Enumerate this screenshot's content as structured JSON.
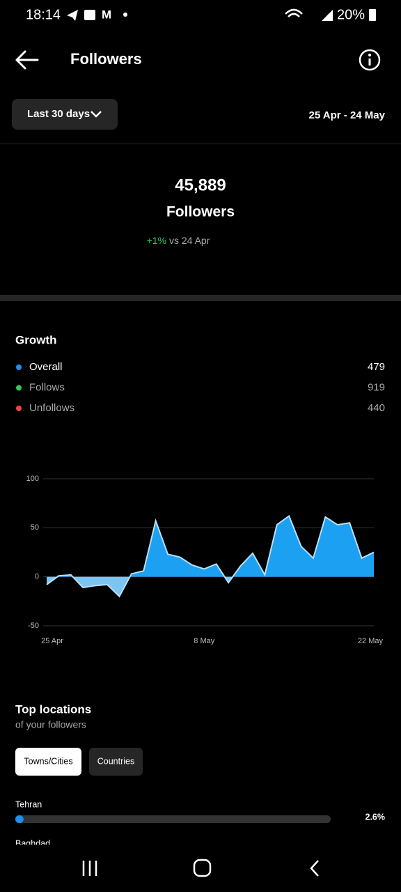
{
  "status_bar": {
    "time": "18:14",
    "battery": "20%"
  },
  "header": {
    "title": "Followers"
  },
  "filter": {
    "period": "Last 30 days",
    "range": "25 Apr - 24 May"
  },
  "summary": {
    "count": "45,889",
    "label": "Followers",
    "change": "+1%",
    "compare": "vs 24 Apr"
  },
  "growth": {
    "title": "Growth",
    "legend": [
      {
        "name": "Overall",
        "color": "#1e90f0",
        "value": "479"
      },
      {
        "name": "Follows",
        "color": "#34c759",
        "value": "919"
      },
      {
        "name": "Unfollows",
        "color": "#ef4444",
        "value": "440"
      }
    ]
  },
  "chart_data": {
    "type": "area",
    "categories": [
      "25 Apr",
      null,
      null,
      null,
      null,
      null,
      null,
      null,
      null,
      null,
      null,
      null,
      null,
      "8 May",
      null,
      null,
      null,
      null,
      null,
      null,
      null,
      null,
      null,
      null,
      null,
      null,
      null,
      "22 May"
    ],
    "values": [
      -8,
      1,
      2,
      -11,
      -9,
      -8,
      -20,
      3,
      6,
      57,
      23,
      20,
      12,
      8,
      13,
      -6,
      11,
      24,
      2,
      53,
      62,
      31,
      19,
      61,
      53,
      55,
      19,
      25
    ],
    "color": "#1ca0f2",
    "negative_color": "#7cc4f2",
    "line_color": "#b9e0fa",
    "ylim": [
      -50,
      100
    ],
    "yticks": [
      -50,
      0,
      50,
      100
    ],
    "grid": true
  },
  "locations": {
    "title": "Top locations",
    "subtitle": "of your followers",
    "tabs": [
      "Towns/Cities",
      "Countries"
    ],
    "xlim": [
      0,
      100
    ],
    "items": [
      {
        "name": "Tehran",
        "value": 2.6,
        "value_label": "2.6%"
      },
      {
        "name": "Baghdad"
      }
    ]
  }
}
